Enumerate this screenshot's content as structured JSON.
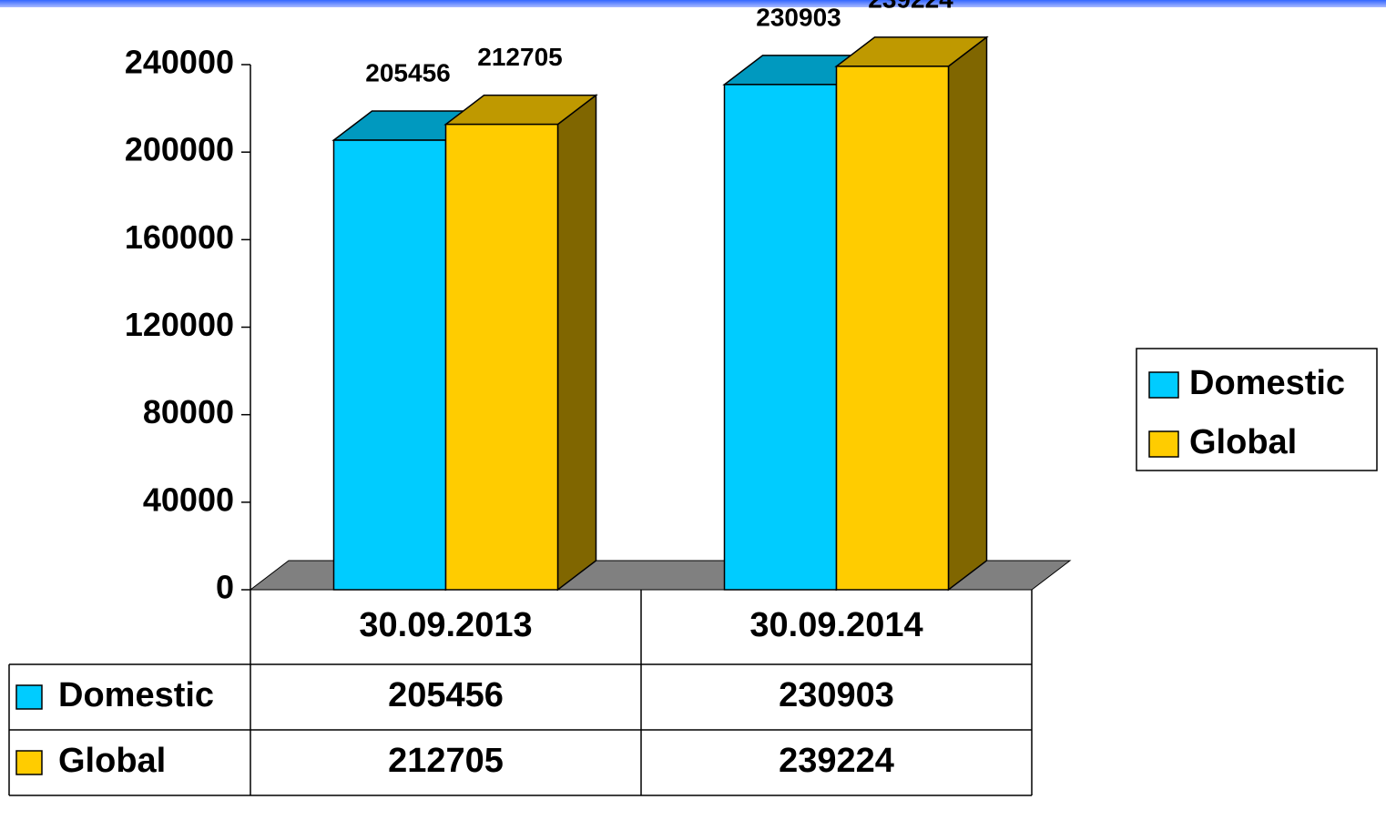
{
  "chart_data": {
    "type": "bar3d",
    "categories": [
      "30.09.2013",
      "30.09.2014"
    ],
    "series": [
      {
        "name": "Domestic",
        "color": "#00ccff",
        "values": [
          205456,
          230903
        ]
      },
      {
        "name": "Global",
        "color": "#ffcc00",
        "values": [
          212705,
          239224
        ]
      }
    ],
    "ylim": [
      0,
      240000
    ],
    "yticks": [
      0,
      40000,
      80000,
      120000,
      160000,
      200000,
      240000
    ],
    "legend": "right"
  }
}
